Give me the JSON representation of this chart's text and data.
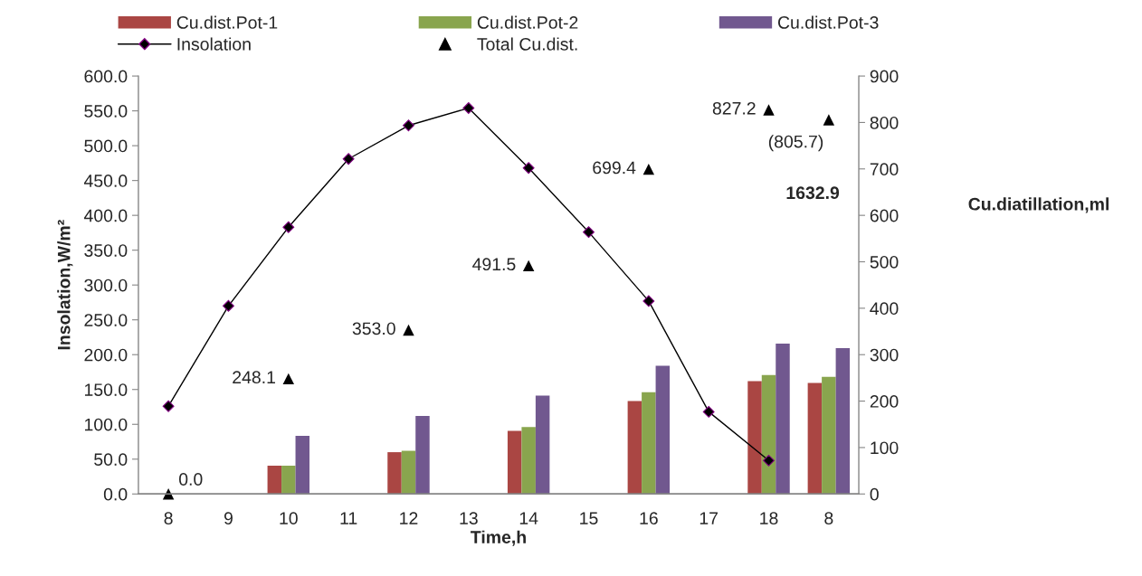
{
  "chart_data": {
    "type": "bar",
    "categories": [
      "8",
      "9",
      "10",
      "11",
      "12",
      "13",
      "14",
      "15",
      "16",
      "17",
      "18",
      "8"
    ],
    "xlabel": "Time,h",
    "ylabel": "Insolation,W/m²",
    "y2label": "Cu.diatillation,ml",
    "ylim": [
      0,
      600
    ],
    "yticks": [
      {
        "value": 0,
        "label": "0.0"
      },
      {
        "value": 50,
        "label": "50.0"
      },
      {
        "value": 100,
        "label": "100.0"
      },
      {
        "value": 150,
        "label": "150.0"
      },
      {
        "value": 200,
        "label": "200.0"
      },
      {
        "value": 250,
        "label": "250.0"
      },
      {
        "value": 300,
        "label": "300.0"
      },
      {
        "value": 350,
        "label": "350.0"
      },
      {
        "value": 400,
        "label": "400.0"
      },
      {
        "value": 450,
        "label": "450.0"
      },
      {
        "value": 500,
        "label": "500.0"
      },
      {
        "value": 550,
        "label": "550.0"
      },
      {
        "value": 600,
        "label": "600.0"
      }
    ],
    "y2lim": [
      0,
      900
    ],
    "y2ticks": [
      0,
      100,
      200,
      300,
      400,
      500,
      600,
      700,
      800,
      900
    ],
    "series": [
      {
        "name": "Cu.dist.Pot-1",
        "axis": "y2",
        "color": "#aa4643",
        "values": [
          null,
          null,
          61,
          null,
          90,
          null,
          136,
          null,
          200,
          null,
          243,
          239
        ]
      },
      {
        "name": "Cu.dist.Pot-2",
        "axis": "y2",
        "color": "#89a54e",
        "values": [
          null,
          null,
          61,
          null,
          93,
          null,
          144,
          null,
          219,
          null,
          256,
          252
        ]
      },
      {
        "name": "Cu.dist.Pot-3",
        "axis": "y2",
        "color": "#71588f",
        "values": [
          null,
          null,
          125,
          null,
          168,
          null,
          212,
          null,
          276,
          null,
          324,
          314
        ]
      },
      {
        "name": "Insolation",
        "type": "line",
        "axis": "y",
        "color": "#000000",
        "marker": "diamond",
        "line_style": "solid",
        "values": [
          126,
          270,
          383,
          481,
          529,
          554,
          468,
          376,
          277,
          118,
          48,
          null
        ]
      },
      {
        "name": "Total Cu.dist.",
        "type": "scatter",
        "axis": "y2",
        "color": "#000000",
        "marker": "triangle",
        "values": [
          0,
          null,
          248.1,
          null,
          353.0,
          null,
          491.5,
          null,
          699.4,
          null,
          827.2,
          805.7
        ],
        "value_labels": [
          "0.0",
          null,
          "248.1",
          null,
          "353.0",
          null,
          "491.5",
          null,
          "699.4",
          null,
          "827.2",
          "(805.7)"
        ]
      }
    ],
    "annotations": [
      "1632.9"
    ],
    "legend": "top"
  }
}
